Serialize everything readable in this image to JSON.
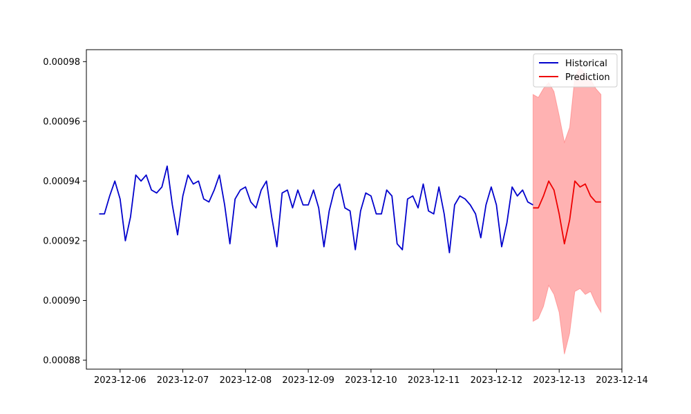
{
  "chart_data": {
    "type": "line",
    "title": "",
    "xlabel": "",
    "ylabel": "",
    "x_ticks": [
      "2023-12-06",
      "2023-12-07",
      "2023-12-08",
      "2023-12-09",
      "2023-12-10",
      "2023-12-11",
      "2023-12-12",
      "2023-12-13",
      "2023-12-14"
    ],
    "y_ticks": [
      "0.00088",
      "0.00090",
      "0.00092",
      "0.00094",
      "0.00096",
      "0.00098"
    ],
    "xlim": [
      "2023-12-05T11:06",
      "2023-12-14T00:00"
    ],
    "ylim": [
      0.000877,
      0.000984
    ],
    "legend_position": "top-right",
    "grid": false,
    "series": [
      {
        "name": "Historical",
        "color": "#0000cc",
        "points": [
          [
            "2023-12-05T16:00",
            0.000929
          ],
          [
            "2023-12-05T18:00",
            0.000929
          ],
          [
            "2023-12-05T20:00",
            0.000935
          ],
          [
            "2023-12-05T22:00",
            0.00094
          ],
          [
            "2023-12-06T00:00",
            0.000934
          ],
          [
            "2023-12-06T02:00",
            0.00092
          ],
          [
            "2023-12-06T04:00",
            0.000928
          ],
          [
            "2023-12-06T06:00",
            0.000942
          ],
          [
            "2023-12-06T08:00",
            0.00094
          ],
          [
            "2023-12-06T10:00",
            0.000942
          ],
          [
            "2023-12-06T12:00",
            0.000937
          ],
          [
            "2023-12-06T14:00",
            0.000936
          ],
          [
            "2023-12-06T16:00",
            0.000938
          ],
          [
            "2023-12-06T18:00",
            0.000945
          ],
          [
            "2023-12-06T20:00",
            0.000932
          ],
          [
            "2023-12-06T22:00",
            0.000922
          ],
          [
            "2023-12-07T00:00",
            0.000935
          ],
          [
            "2023-12-07T02:00",
            0.000942
          ],
          [
            "2023-12-07T04:00",
            0.000939
          ],
          [
            "2023-12-07T06:00",
            0.00094
          ],
          [
            "2023-12-07T08:00",
            0.000934
          ],
          [
            "2023-12-07T10:00",
            0.000933
          ],
          [
            "2023-12-07T12:00",
            0.000937
          ],
          [
            "2023-12-07T14:00",
            0.000942
          ],
          [
            "2023-12-07T16:00",
            0.000932
          ],
          [
            "2023-12-07T18:00",
            0.000919
          ],
          [
            "2023-12-07T20:00",
            0.000934
          ],
          [
            "2023-12-07T22:00",
            0.000937
          ],
          [
            "2023-12-08T00:00",
            0.000938
          ],
          [
            "2023-12-08T02:00",
            0.000933
          ],
          [
            "2023-12-08T04:00",
            0.000931
          ],
          [
            "2023-12-08T06:00",
            0.000937
          ],
          [
            "2023-12-08T08:00",
            0.00094
          ],
          [
            "2023-12-08T10:00",
            0.000928
          ],
          [
            "2023-12-08T12:00",
            0.000918
          ],
          [
            "2023-12-08T14:00",
            0.000936
          ],
          [
            "2023-12-08T16:00",
            0.000937
          ],
          [
            "2023-12-08T18:00",
            0.000931
          ],
          [
            "2023-12-08T20:00",
            0.000937
          ],
          [
            "2023-12-08T22:00",
            0.000932
          ],
          [
            "2023-12-09T00:00",
            0.000932
          ],
          [
            "2023-12-09T02:00",
            0.000937
          ],
          [
            "2023-12-09T04:00",
            0.000931
          ],
          [
            "2023-12-09T06:00",
            0.000918
          ],
          [
            "2023-12-09T08:00",
            0.00093
          ],
          [
            "2023-12-09T10:00",
            0.000937
          ],
          [
            "2023-12-09T12:00",
            0.000939
          ],
          [
            "2023-12-09T14:00",
            0.000931
          ],
          [
            "2023-12-09T16:00",
            0.00093
          ],
          [
            "2023-12-09T18:00",
            0.000917
          ],
          [
            "2023-12-09T20:00",
            0.00093
          ],
          [
            "2023-12-09T22:00",
            0.000936
          ],
          [
            "2023-12-10T00:00",
            0.000935
          ],
          [
            "2023-12-10T02:00",
            0.000929
          ],
          [
            "2023-12-10T04:00",
            0.000929
          ],
          [
            "2023-12-10T06:00",
            0.000937
          ],
          [
            "2023-12-10T08:00",
            0.000935
          ],
          [
            "2023-12-10T10:00",
            0.000919
          ],
          [
            "2023-12-10T12:00",
            0.000917
          ],
          [
            "2023-12-10T14:00",
            0.000934
          ],
          [
            "2023-12-10T16:00",
            0.000935
          ],
          [
            "2023-12-10T18:00",
            0.000931
          ],
          [
            "2023-12-10T20:00",
            0.000939
          ],
          [
            "2023-12-10T22:00",
            0.00093
          ],
          [
            "2023-12-11T00:00",
            0.000929
          ],
          [
            "2023-12-11T02:00",
            0.000938
          ],
          [
            "2023-12-11T04:00",
            0.000929
          ],
          [
            "2023-12-11T06:00",
            0.000916
          ],
          [
            "2023-12-11T08:00",
            0.000932
          ],
          [
            "2023-12-11T10:00",
            0.000935
          ],
          [
            "2023-12-11T12:00",
            0.000934
          ],
          [
            "2023-12-11T14:00",
            0.000932
          ],
          [
            "2023-12-11T16:00",
            0.000929
          ],
          [
            "2023-12-11T18:00",
            0.000921
          ],
          [
            "2023-12-11T20:00",
            0.000932
          ],
          [
            "2023-12-11T22:00",
            0.000938
          ],
          [
            "2023-12-12T00:00",
            0.000932
          ],
          [
            "2023-12-12T02:00",
            0.000918
          ],
          [
            "2023-12-12T04:00",
            0.000926
          ],
          [
            "2023-12-12T06:00",
            0.000938
          ],
          [
            "2023-12-12T08:00",
            0.000935
          ],
          [
            "2023-12-12T10:00",
            0.000937
          ],
          [
            "2023-12-12T12:00",
            0.000933
          ],
          [
            "2023-12-12T14:00",
            0.000932
          ]
        ]
      },
      {
        "name": "Prediction",
        "color": "#ee0000",
        "points": [
          [
            "2023-12-12T14:00",
            0.000931
          ],
          [
            "2023-12-12T16:00",
            0.000931
          ],
          [
            "2023-12-12T18:00",
            0.000935
          ],
          [
            "2023-12-12T20:00",
            0.00094
          ],
          [
            "2023-12-12T22:00",
            0.000937
          ],
          [
            "2023-12-13T00:00",
            0.000929
          ],
          [
            "2023-12-13T02:00",
            0.000919
          ],
          [
            "2023-12-13T04:00",
            0.000927
          ],
          [
            "2023-12-13T06:00",
            0.00094
          ],
          [
            "2023-12-13T08:00",
            0.000938
          ],
          [
            "2023-12-13T10:00",
            0.000939
          ],
          [
            "2023-12-13T12:00",
            0.000935
          ],
          [
            "2023-12-13T14:00",
            0.000933
          ],
          [
            "2023-12-13T16:00",
            0.000933
          ]
        ]
      }
    ],
    "prediction_band": {
      "color": "#ff0000",
      "upper": [
        [
          "2023-12-12T14:00",
          0.000969
        ],
        [
          "2023-12-12T16:00",
          0.000968
        ],
        [
          "2023-12-12T18:00",
          0.000971
        ],
        [
          "2023-12-12T20:00",
          0.000973
        ],
        [
          "2023-12-12T22:00",
          0.00097
        ],
        [
          "2023-12-13T00:00",
          0.000962
        ],
        [
          "2023-12-13T02:00",
          0.000953
        ],
        [
          "2023-12-13T04:00",
          0.000958
        ],
        [
          "2023-12-13T06:00",
          0.000975
        ],
        [
          "2023-12-13T08:00",
          0.000978
        ],
        [
          "2023-12-13T10:00",
          0.000976
        ],
        [
          "2023-12-13T12:00",
          0.000974
        ],
        [
          "2023-12-13T14:00",
          0.000971
        ],
        [
          "2023-12-13T16:00",
          0.000969
        ]
      ],
      "lower": [
        [
          "2023-12-12T14:00",
          0.000893
        ],
        [
          "2023-12-12T16:00",
          0.000894
        ],
        [
          "2023-12-12T18:00",
          0.000898
        ],
        [
          "2023-12-12T20:00",
          0.000905
        ],
        [
          "2023-12-12T22:00",
          0.000902
        ],
        [
          "2023-12-13T00:00",
          0.000896
        ],
        [
          "2023-12-13T02:00",
          0.000882
        ],
        [
          "2023-12-13T04:00",
          0.000889
        ],
        [
          "2023-12-13T06:00",
          0.000903
        ],
        [
          "2023-12-13T08:00",
          0.000904
        ],
        [
          "2023-12-13T10:00",
          0.000902
        ],
        [
          "2023-12-13T12:00",
          0.000903
        ],
        [
          "2023-12-13T14:00",
          0.000899
        ],
        [
          "2023-12-13T16:00",
          0.000896
        ]
      ]
    }
  }
}
